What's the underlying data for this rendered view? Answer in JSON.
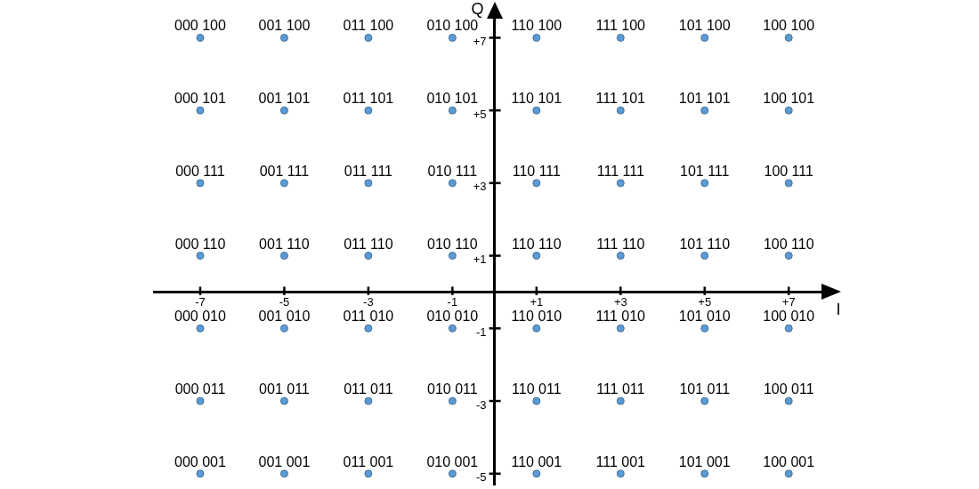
{
  "chart_data": {
    "type": "scatter",
    "xlabel": "I",
    "ylabel": "Q",
    "color": "#5b9bd5",
    "marker": "circle",
    "grid": false,
    "xlim": [
      -8.1,
      7.8
    ],
    "ylim": [
      -5.3,
      7.55
    ],
    "xticks": [
      -7,
      -5,
      -3,
      -1,
      {
        "value": 1,
        "label": "+1"
      },
      {
        "value": 3,
        "label": "+3"
      },
      {
        "value": 5,
        "label": "+5"
      },
      {
        "value": 7,
        "label": "+7"
      }
    ],
    "yticks": [
      -5,
      -3,
      -1,
      {
        "value": 1,
        "label": "+1"
      },
      {
        "value": 3,
        "label": "+3"
      },
      {
        "value": 5,
        "label": "+5"
      },
      {
        "value": 7,
        "label": "+7"
      }
    ],
    "x": [
      -7,
      -5,
      -3,
      -1,
      1,
      3,
      5,
      7,
      -7,
      -5,
      -3,
      -1,
      1,
      3,
      5,
      7,
      -7,
      -5,
      -3,
      -1,
      1,
      3,
      5,
      7,
      -7,
      -5,
      -3,
      -1,
      1,
      3,
      5,
      7,
      -7,
      -5,
      -3,
      -1,
      1,
      3,
      5,
      7,
      -7,
      -5,
      -3,
      -1,
      1,
      3,
      5,
      7,
      -7,
      -5,
      -3,
      -1,
      1,
      3,
      5,
      7
    ],
    "values": [
      7,
      7,
      7,
      7,
      7,
      7,
      7,
      7,
      5,
      5,
      5,
      5,
      5,
      5,
      5,
      5,
      3,
      3,
      3,
      3,
      3,
      3,
      3,
      3,
      1,
      1,
      1,
      1,
      1,
      1,
      1,
      1,
      -1,
      -1,
      -1,
      -1,
      -1,
      -1,
      -1,
      -1,
      -3,
      -3,
      -3,
      -3,
      -3,
      -3,
      -3,
      -3,
      -5,
      -5,
      -5,
      -5,
      -5,
      -5,
      -5,
      -5
    ],
    "annotations": [
      {
        "text": "000 100",
        "x": -7,
        "y": 7
      },
      {
        "text": "001 100",
        "x": -5,
        "y": 7
      },
      {
        "text": "011 100",
        "x": -3,
        "y": 7
      },
      {
        "text": "010 100",
        "x": -1,
        "y": 7
      },
      {
        "text": "110 100",
        "x": 1,
        "y": 7
      },
      {
        "text": "111 100",
        "x": 3,
        "y": 7
      },
      {
        "text": "101 100",
        "x": 5,
        "y": 7
      },
      {
        "text": "100 100",
        "x": 7,
        "y": 7
      },
      {
        "text": "000 101",
        "x": -7,
        "y": 5
      },
      {
        "text": "001 101",
        "x": -5,
        "y": 5
      },
      {
        "text": "011 101",
        "x": -3,
        "y": 5
      },
      {
        "text": "010 101",
        "x": -1,
        "y": 5
      },
      {
        "text": "110 101",
        "x": 1,
        "y": 5
      },
      {
        "text": "111 101",
        "x": 3,
        "y": 5
      },
      {
        "text": "101 101",
        "x": 5,
        "y": 5
      },
      {
        "text": "100 101",
        "x": 7,
        "y": 5
      },
      {
        "text": "000 111",
        "x": -7,
        "y": 3
      },
      {
        "text": "001 111",
        "x": -5,
        "y": 3
      },
      {
        "text": "011 111",
        "x": -3,
        "y": 3
      },
      {
        "text": "010 111",
        "x": -1,
        "y": 3
      },
      {
        "text": "110 111",
        "x": 1,
        "y": 3
      },
      {
        "text": "111 111",
        "x": 3,
        "y": 3
      },
      {
        "text": "101 111",
        "x": 5,
        "y": 3
      },
      {
        "text": "100 111",
        "x": 7,
        "y": 3
      },
      {
        "text": "000 110",
        "x": -7,
        "y": 1
      },
      {
        "text": "001 110",
        "x": -5,
        "y": 1
      },
      {
        "text": "011 110",
        "x": -3,
        "y": 1
      },
      {
        "text": "010 110",
        "x": -1,
        "y": 1
      },
      {
        "text": "110 110",
        "x": 1,
        "y": 1
      },
      {
        "text": "111 110",
        "x": 3,
        "y": 1
      },
      {
        "text": "101 110",
        "x": 5,
        "y": 1
      },
      {
        "text": "100 110",
        "x": 7,
        "y": 1
      },
      {
        "text": "000 010",
        "x": -7,
        "y": -1
      },
      {
        "text": "001 010",
        "x": -5,
        "y": -1
      },
      {
        "text": "011 010",
        "x": -3,
        "y": -1
      },
      {
        "text": "010 010",
        "x": -1,
        "y": -1
      },
      {
        "text": "110 010",
        "x": 1,
        "y": -1
      },
      {
        "text": "111 010",
        "x": 3,
        "y": -1
      },
      {
        "text": "101 010",
        "x": 5,
        "y": -1
      },
      {
        "text": "100 010",
        "x": 7,
        "y": -1
      },
      {
        "text": "000 011",
        "x": -7,
        "y": -3
      },
      {
        "text": "001 011",
        "x": -5,
        "y": -3
      },
      {
        "text": "011 011",
        "x": -3,
        "y": -3
      },
      {
        "text": "010 011",
        "x": -1,
        "y": -3
      },
      {
        "text": "110 011",
        "x": 1,
        "y": -3
      },
      {
        "text": "111 011",
        "x": 3,
        "y": -3
      },
      {
        "text": "101 011",
        "x": 5,
        "y": -3
      },
      {
        "text": "100 011",
        "x": 7,
        "y": -3
      },
      {
        "text": "000 001",
        "x": -7,
        "y": -5
      },
      {
        "text": "001 001",
        "x": -5,
        "y": -5
      },
      {
        "text": "011 001",
        "x": -3,
        "y": -5
      },
      {
        "text": "010 001",
        "x": -1,
        "y": -5
      },
      {
        "text": "110 001",
        "x": 1,
        "y": -5
      },
      {
        "text": "111 001",
        "x": 3,
        "y": -5
      },
      {
        "text": "101 001",
        "x": 5,
        "y": -5
      },
      {
        "text": "100 001",
        "x": 7,
        "y": -5
      }
    ]
  }
}
